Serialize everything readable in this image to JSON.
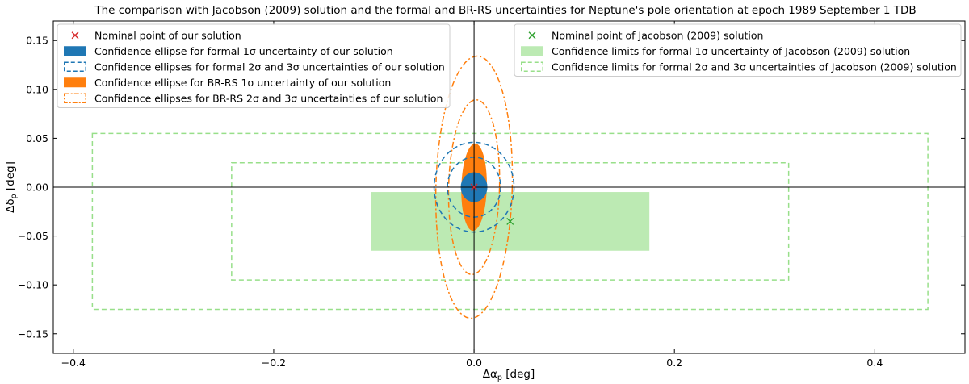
{
  "chart_data": {
    "type": "scatter",
    "title": "The comparison with Jacobson (2009) solution and the formal and BR-RS uncertainties for Neptune's pole orientation at epoch 1989 September 1 TDB",
    "xlabel_main": "Δα",
    "xlabel_sub": "p",
    "xlabel_unit": " [deg]",
    "ylabel_main": "Δδ",
    "ylabel_sub": "p",
    "ylabel_unit": " [deg]",
    "xlim": [
      -0.42,
      0.49
    ],
    "ylim": [
      -0.17,
      0.17
    ],
    "xticks": [
      -0.4,
      -0.2,
      0.0,
      0.2,
      0.4
    ],
    "xtick_labels": [
      "−0.4",
      "−0.2",
      "0.0",
      "0.2",
      "0.4"
    ],
    "yticks": [
      -0.15,
      -0.1,
      -0.05,
      0.0,
      0.05,
      0.1,
      0.15
    ],
    "ytick_labels": [
      "−0.15",
      "−0.10",
      "−0.05",
      "0.00",
      "0.05",
      "0.10",
      "0.15"
    ],
    "grid": false,
    "colors": {
      "blue": "#1f77b4",
      "orange": "#ff7f0e",
      "green": "#2ca02c",
      "light_green": "#98df8a",
      "red": "#d62728"
    },
    "our_solution": {
      "nominal": [
        0.0,
        0.0
      ],
      "formal_1sigma": {
        "rx": 0.0133,
        "ry": 0.0153
      },
      "brrs_1sigma": {
        "rx": 0.0127,
        "ry": 0.0447,
        "tilt_deg": 1.5
      },
      "formal_sigmas": [
        2,
        3
      ],
      "brrs_sigmas": [
        2,
        3
      ]
    },
    "jacobson": {
      "nominal": [
        0.036,
        -0.035
      ],
      "sigma_x": 0.139,
      "sigma_y": 0.03,
      "sigmas": [
        2,
        3
      ]
    },
    "legend_left": [
      {
        "label": "Nominal point of our solution"
      },
      {
        "label": "Confidence ellipse for formal 1σ uncertainty of our solution"
      },
      {
        "label": "Confidence ellipses for formal 2σ and 3σ uncertainties of our solution"
      },
      {
        "label": "Confidence ellipse for BR-RS 1σ uncertainty of our solution"
      },
      {
        "label": "Confidence ellipses for BR-RS 2σ and 3σ uncertainties of our solution"
      }
    ],
    "legend_right": [
      {
        "label": "Nominal point of Jacobson (2009) solution"
      },
      {
        "label": "Confidence limits for formal 1σ uncertainty of Jacobson (2009) solution"
      },
      {
        "label": "Confidence limits for formal 2σ and 3σ uncertainties of Jacobson (2009) solution"
      }
    ]
  }
}
